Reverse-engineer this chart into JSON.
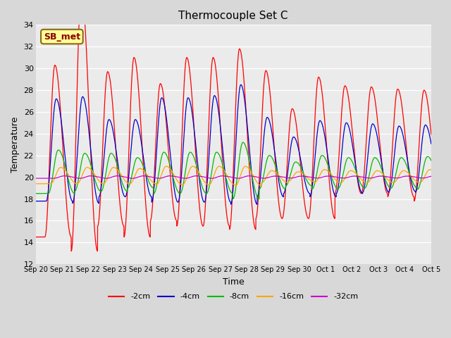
{
  "title": "Thermocouple Set C",
  "xlabel": "Time",
  "ylabel": "Temperature",
  "ylim": [
    12,
    34
  ],
  "yticks": [
    12,
    14,
    16,
    18,
    20,
    22,
    24,
    26,
    28,
    30,
    32,
    34
  ],
  "bg_color": "#d8d8d8",
  "plot_bg_color": "#ebebeb",
  "annotation_text": "SB_met",
  "annotation_bg": "#ffff99",
  "annotation_border": "#8b6914",
  "annotation_text_color": "#8b0000",
  "series_colors": {
    "-2cm": "#ff0000",
    "-4cm": "#0000cc",
    "-8cm": "#00bb00",
    "-16cm": "#ffa500",
    "-32cm": "#cc00cc"
  },
  "n_days": 15,
  "base_temp": 20.0,
  "peak_amplitudes": {
    "-2cm": [
      10.3,
      17.0,
      9.7,
      11.0,
      8.6,
      11.0,
      11.0,
      11.8,
      9.8,
      6.3,
      9.2,
      8.4,
      8.3,
      8.1,
      8.0
    ],
    "-4cm": [
      7.2,
      7.4,
      5.3,
      5.3,
      7.3,
      7.3,
      7.5,
      8.5,
      5.5,
      3.7,
      5.2,
      5.0,
      4.9,
      4.7,
      4.8
    ],
    "-8cm": [
      2.5,
      2.2,
      2.2,
      1.8,
      2.3,
      2.3,
      2.3,
      3.2,
      2.0,
      1.4,
      2.0,
      1.8,
      1.8,
      1.8,
      1.9
    ],
    "-16cm": [
      0.9,
      0.9,
      0.9,
      0.8,
      1.0,
      1.0,
      1.0,
      1.0,
      0.6,
      0.5,
      0.7,
      0.6,
      0.6,
      0.6,
      0.7
    ],
    "-32cm": [
      0.12,
      0.12,
      0.12,
      0.12,
      0.12,
      0.12,
      0.12,
      0.12,
      0.1,
      0.1,
      0.1,
      0.1,
      0.1,
      0.1,
      0.1
    ]
  },
  "trough_amplitudes": {
    "-2cm": [
      5.5,
      6.8,
      4.5,
      5.5,
      4.0,
      4.5,
      4.5,
      4.8,
      3.8,
      3.8,
      3.8,
      1.5,
      1.5,
      1.8,
      2.2
    ],
    "-4cm": [
      2.2,
      2.4,
      1.8,
      1.8,
      2.3,
      2.3,
      2.3,
      2.5,
      1.8,
      1.5,
      1.8,
      1.5,
      1.4,
      1.3,
      1.4
    ],
    "-8cm": [
      1.5,
      1.3,
      1.3,
      1.0,
      1.5,
      1.5,
      1.5,
      2.0,
      1.1,
      0.8,
      1.1,
      1.0,
      1.0,
      1.0,
      1.1
    ],
    "-16cm": [
      0.6,
      0.6,
      0.6,
      0.6,
      0.7,
      0.7,
      0.7,
      0.8,
      0.5,
      0.4,
      0.5,
      0.5,
      0.5,
      0.5,
      0.5
    ],
    "-32cm": [
      0.1,
      0.1,
      0.1,
      0.1,
      0.1,
      0.1,
      0.1,
      0.1,
      0.08,
      0.08,
      0.08,
      0.08,
      0.08,
      0.08,
      0.08
    ]
  },
  "phase_shifts_days": {
    "-2cm": 0.35,
    "-4cm": 0.4,
    "-8cm": 0.48,
    "-16cm": 0.57,
    "-32cm": 0.7
  },
  "x_tick_labels": [
    "Sep 20",
    "Sep 21",
    "Sep 22",
    "Sep 23",
    "Sep 24",
    "Sep 25",
    "Sep 26",
    "Sep 27",
    "Sep 28",
    "Sep 29",
    "Sep 30",
    "Oct 1",
    "Oct 2",
    "Oct 3",
    "Oct 4",
    "Oct 5"
  ]
}
